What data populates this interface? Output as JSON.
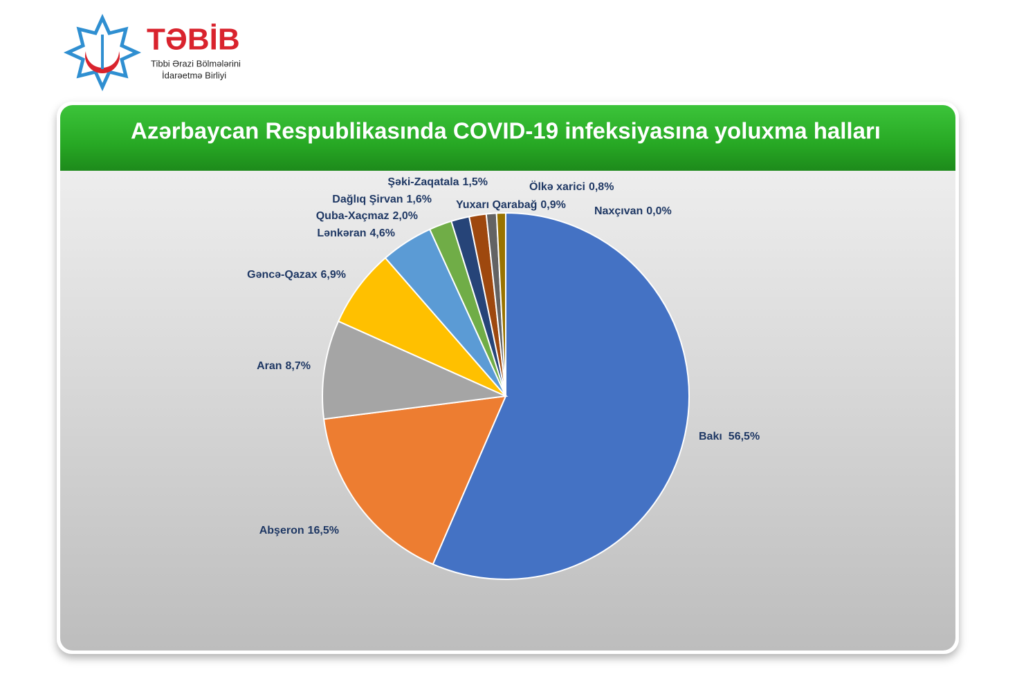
{
  "header": {
    "logo_title": "TƏBİB",
    "logo_subtitle_1": "Tibbi Ərazi Bölmələrini",
    "logo_subtitle_2": "İdarəetmə Birliyi"
  },
  "chart_data": {
    "type": "pie",
    "title": "Azərbaycan Respublikasında COVID-19 infeksiyasına yoluxma halları",
    "categories": [
      "Bakı",
      "Abşeron",
      "Aran",
      "Gəncə-Qazax",
      "Lənkəran",
      "Quba-Xaçmaz",
      "Dağlıq Şirvan",
      "Şəki-Zaqatala",
      "Yuxarı Qarabağ",
      "Ölkə xarici",
      "Naxçıvan"
    ],
    "values": [
      56.5,
      16.5,
      8.7,
      6.9,
      4.6,
      2.0,
      1.6,
      1.5,
      0.9,
      0.8,
      0.0
    ],
    "value_labels": [
      "56,5%",
      "16,5%",
      "8,7%",
      "6,9%",
      "4,6%",
      "2,0%",
      "1,6%",
      "1,5%",
      "0,9%",
      "0,8%",
      "0,0%"
    ],
    "colors": [
      "#4472c4",
      "#ed7d31",
      "#a5a5a5",
      "#ffc000",
      "#5b9bd5",
      "#70ad47",
      "#264478",
      "#9e480e",
      "#636363",
      "#997300",
      "#255e91"
    ]
  }
}
